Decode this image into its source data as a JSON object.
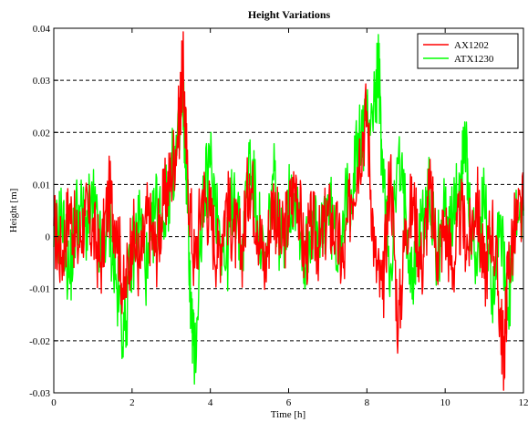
{
  "chart_data": {
    "type": "line",
    "title": "Height Variations",
    "xlabel": "Time [h]",
    "ylabel": "Height [m]",
    "xlim": [
      0,
      12
    ],
    "ylim": [
      -0.03,
      0.04
    ],
    "xticks": [
      "0",
      "2",
      "4",
      "6",
      "8",
      "10",
      "12"
    ],
    "yticks": [
      "-0.03",
      "-0.02",
      "-0.01",
      "0",
      "0.01",
      "0.02",
      "0.03",
      "0.04"
    ],
    "grid": "horizontal dashed at y ticks",
    "legend_position": "top-right",
    "series": [
      {
        "name": "AX1202",
        "color": "#ff0000",
        "x": [
          0,
          0.2,
          0.4,
          0.6,
          0.8,
          1.0,
          1.2,
          1.4,
          1.6,
          1.8,
          2.0,
          2.2,
          2.4,
          2.6,
          2.8,
          3.0,
          3.2,
          3.3,
          3.4,
          3.6,
          3.8,
          4.0,
          4.2,
          4.4,
          4.6,
          4.8,
          5.0,
          5.2,
          5.4,
          5.6,
          5.8,
          6.0,
          6.2,
          6.4,
          6.6,
          6.8,
          7.0,
          7.2,
          7.4,
          7.6,
          7.8,
          8.0,
          8.2,
          8.4,
          8.6,
          8.8,
          9.0,
          9.2,
          9.4,
          9.6,
          9.8,
          10.0,
          10.2,
          10.4,
          10.6,
          10.8,
          11.0,
          11.2,
          11.4,
          11.5,
          11.6,
          11.8,
          12.0
        ],
        "y": [
          0.002,
          -0.004,
          0.006,
          -0.002,
          0.004,
          0.001,
          -0.005,
          0.008,
          0.003,
          -0.012,
          0.001,
          -0.006,
          0.004,
          -0.003,
          0.006,
          0.012,
          0.022,
          0.033,
          0.014,
          -0.006,
          0.009,
          0.004,
          -0.004,
          0.007,
          0.001,
          -0.003,
          0.012,
          0.003,
          -0.006,
          0.008,
          -0.002,
          0.004,
          0.011,
          -0.004,
          0.002,
          -0.002,
          0.004,
          0.001,
          -0.006,
          0.008,
          0.016,
          0.024,
          -0.004,
          -0.012,
          0.014,
          -0.018,
          0.003,
          0.006,
          -0.006,
          0.009,
          -0.003,
          0.002,
          -0.006,
          0.004,
          -0.002,
          0.008,
          -0.008,
          0.003,
          -0.014,
          -0.024,
          -0.006,
          0.002,
          0.005
        ]
      },
      {
        "name": "ATX1230",
        "color": "#00ff00",
        "x": [
          0,
          0.2,
          0.4,
          0.6,
          0.8,
          1.0,
          1.2,
          1.4,
          1.6,
          1.8,
          2.0,
          2.2,
          2.4,
          2.6,
          2.8,
          3.0,
          3.2,
          3.3,
          3.4,
          3.5,
          3.6,
          3.8,
          4.0,
          4.2,
          4.4,
          4.6,
          4.8,
          5.0,
          5.2,
          5.4,
          5.6,
          5.8,
          6.0,
          6.2,
          6.4,
          6.6,
          6.8,
          7.0,
          7.2,
          7.4,
          7.6,
          7.8,
          8.0,
          8.2,
          8.3,
          8.4,
          8.6,
          8.8,
          9.0,
          9.2,
          9.4,
          9.6,
          9.8,
          10.0,
          10.2,
          10.4,
          10.5,
          10.6,
          10.8,
          11.0,
          11.2,
          11.4,
          11.6,
          11.8,
          12.0
        ],
        "y": [
          -0.002,
          0.004,
          -0.008,
          0.006,
          0.002,
          0.006,
          -0.003,
          0.004,
          -0.01,
          -0.018,
          -0.004,
          0.004,
          -0.008,
          0.006,
          0.003,
          0.012,
          0.018,
          0.026,
          0.012,
          -0.014,
          -0.024,
          0.006,
          0.014,
          0.004,
          -0.006,
          0.01,
          -0.004,
          0.016,
          0.004,
          -0.008,
          0.012,
          -0.002,
          0.006,
          0.009,
          -0.006,
          0.004,
          -0.004,
          0.008,
          -0.002,
          0.004,
          0.009,
          0.018,
          0.022,
          0.026,
          0.033,
          0.012,
          -0.006,
          0.014,
          0.004,
          -0.008,
          0.003,
          0.008,
          -0.004,
          0.006,
          0.002,
          0.012,
          0.022,
          0.004,
          -0.006,
          0.008,
          -0.01,
          0.004,
          -0.016,
          0.002,
          0.004
        ]
      }
    ]
  }
}
